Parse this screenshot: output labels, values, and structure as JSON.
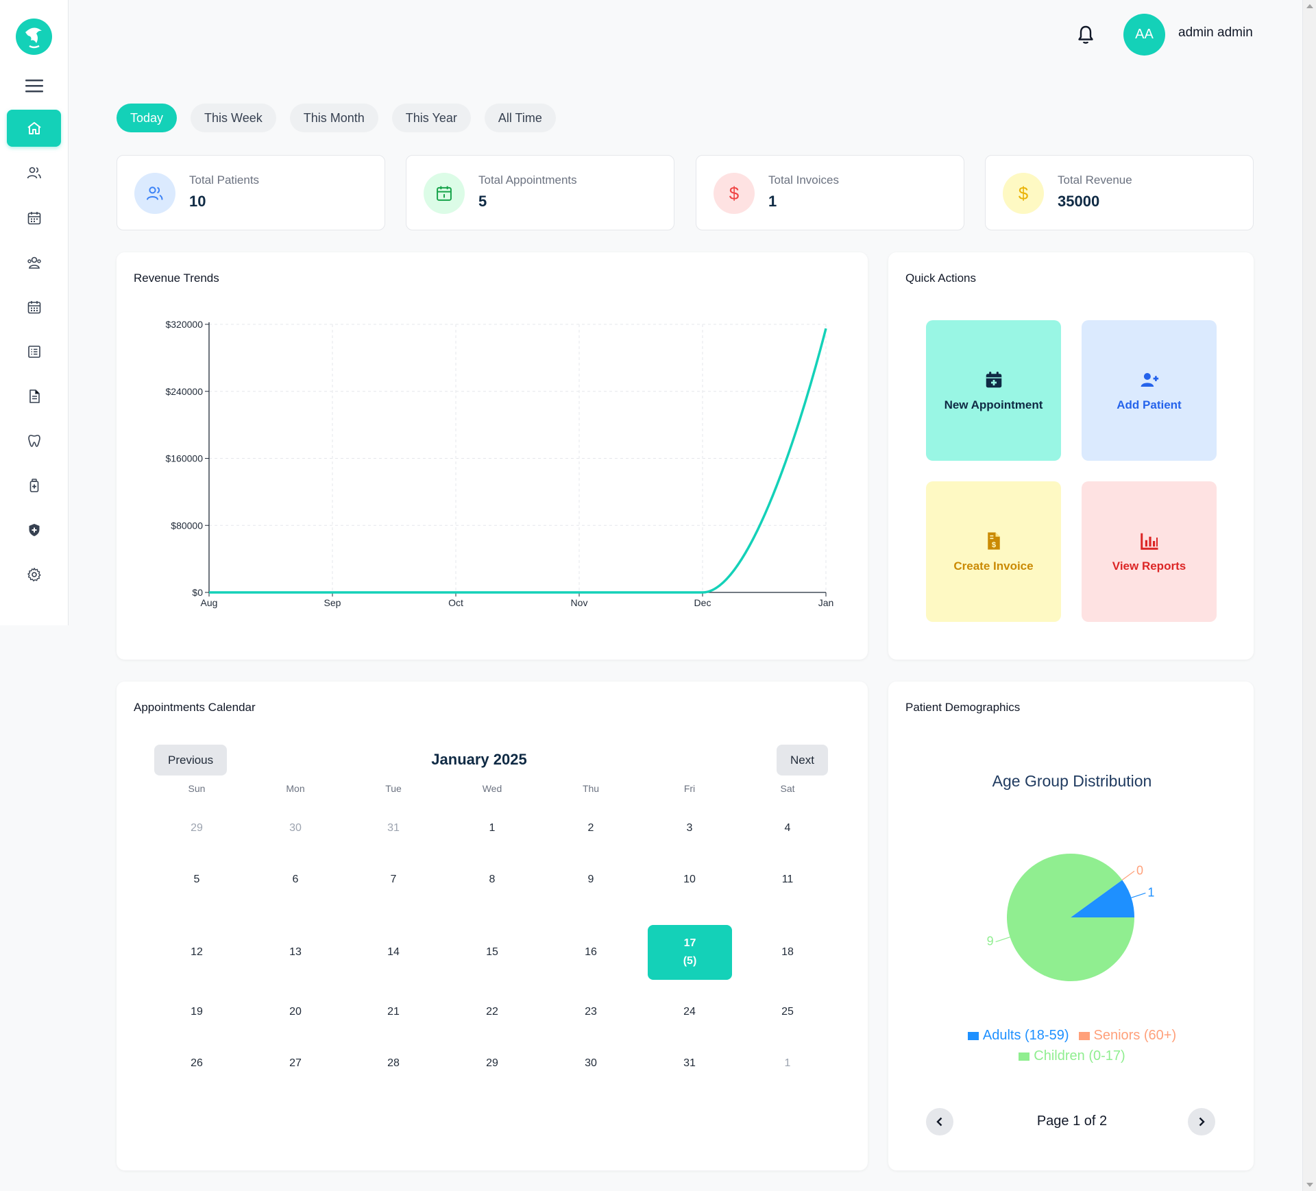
{
  "header": {
    "avatar_initials": "AA",
    "username": "admin admin",
    "bell_icon": "bell-icon"
  },
  "sidebar": {
    "items": [
      {
        "name": "home",
        "icon": "home-icon",
        "active": true
      },
      {
        "name": "patients",
        "icon": "users-icon",
        "active": false
      },
      {
        "name": "appointments",
        "icon": "calendar-icon",
        "active": false
      },
      {
        "name": "staff",
        "icon": "user-group-icon",
        "active": false
      },
      {
        "name": "schedule",
        "icon": "calendar-grid-icon",
        "active": false
      },
      {
        "name": "records",
        "icon": "list-icon",
        "active": false
      },
      {
        "name": "invoices",
        "icon": "document-icon",
        "active": false
      },
      {
        "name": "dental",
        "icon": "tooth-icon",
        "active": false
      },
      {
        "name": "medicine",
        "icon": "medicine-bottle-icon",
        "active": false
      },
      {
        "name": "insurance",
        "icon": "shield-plus-icon",
        "active": false
      },
      {
        "name": "settings",
        "icon": "gear-icon",
        "active": false
      }
    ]
  },
  "filters": {
    "tabs": [
      "Today",
      "This Week",
      "This Month",
      "This Year",
      "All Time"
    ],
    "active": "Today"
  },
  "stats": [
    {
      "label": "Total Patients",
      "value": "10",
      "icon": "users-icon",
      "color": "#3b82f6",
      "bg": "#dbeafe"
    },
    {
      "label": "Total Appointments",
      "value": "5",
      "icon": "calendar-icon",
      "color": "#16a34a",
      "bg": "#dcfce7"
    },
    {
      "label": "Total Invoices",
      "value": "1",
      "icon": "dollar-icon",
      "color": "#ef4444",
      "bg": "#fee2e2"
    },
    {
      "label": "Total Revenue",
      "value": "35000",
      "icon": "dollar-icon",
      "color": "#eab308",
      "bg": "#fef9c3"
    }
  ],
  "revenue": {
    "title": "Revenue Trends",
    "chart_data": {
      "type": "line",
      "x": [
        "Aug",
        "Sep",
        "Oct",
        "Nov",
        "Dec",
        "Jan"
      ],
      "series": [
        {
          "values": [
            0,
            0,
            0,
            0,
            0,
            315000
          ]
        }
      ],
      "yticks": [
        "$0",
        "$80000",
        "$160000",
        "$240000",
        "$320000"
      ],
      "ylim": [
        0,
        320000
      ],
      "grid": true,
      "color": "#14d1b8"
    }
  },
  "quick_actions": {
    "title": "Quick Actions",
    "items": [
      {
        "label": "New Appointment",
        "icon": "calendar-plus-icon",
        "color": "#0f2a44",
        "bg": "#99f6e4"
      },
      {
        "label": "Add Patient",
        "icon": "user-plus-icon",
        "color": "#2563eb",
        "bg": "#dbeafe"
      },
      {
        "label": "Create Invoice",
        "icon": "invoice-icon",
        "color": "#ca8a04",
        "bg": "#fef9c3"
      },
      {
        "label": "View Reports",
        "icon": "bar-chart-icon",
        "color": "#dc2626",
        "bg": "#fee2e2"
      }
    ]
  },
  "calendar": {
    "title": "Appointments Calendar",
    "month_label": "January 2025",
    "prev_label": "Previous",
    "next_label": "Next",
    "days_of_week": [
      "Sun",
      "Mon",
      "Tue",
      "Wed",
      "Thu",
      "Fri",
      "Sat"
    ],
    "weeks": [
      [
        "29",
        "30",
        "31",
        "1",
        "2",
        "3",
        "4"
      ],
      [
        "5",
        "6",
        "7",
        "8",
        "9",
        "10",
        "11"
      ],
      [
        "12",
        "13",
        "14",
        "15",
        "16",
        "17",
        "18"
      ],
      [
        "19",
        "20",
        "21",
        "22",
        "23",
        "24",
        "25"
      ],
      [
        "26",
        "27",
        "28",
        "29",
        "30",
        "31",
        "1"
      ]
    ],
    "highlight": {
      "day": "17",
      "count": "(5)"
    }
  },
  "demographics": {
    "title": "Patient Demographics",
    "chart_title": "Age Group Distribution",
    "chart_data": {
      "type": "pie",
      "slices": [
        {
          "label": "Adults (18-59)",
          "value": 1,
          "color": "#1e90ff"
        },
        {
          "label": "Seniors (60+)",
          "value": 0,
          "color": "#ffa07a"
        },
        {
          "label": "Children (0-17)",
          "value": 9,
          "color": "#90ee90"
        }
      ]
    },
    "pagination": "Page 1 of 2"
  }
}
